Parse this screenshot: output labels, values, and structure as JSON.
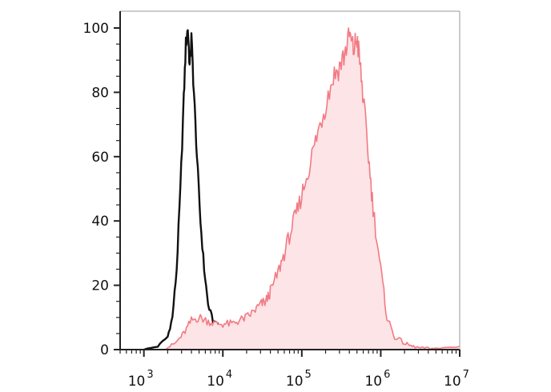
{
  "chart_data": {
    "type": "area",
    "title": "",
    "xlabel": "",
    "ylabel": "",
    "x_scale": "log",
    "xlim": [
      500,
      10000000
    ],
    "ylim": [
      0,
      100
    ],
    "grid": false,
    "x_tick_labels": [
      {
        "base": "10",
        "exp": "3",
        "value": 1000
      },
      {
        "base": "10",
        "exp": "4",
        "value": 10000
      },
      {
        "base": "10",
        "exp": "5",
        "value": 100000
      },
      {
        "base": "10",
        "exp": "6",
        "value": 1000000
      },
      {
        "base": "10",
        "exp": "7",
        "value": 10000000
      }
    ],
    "y_tick_labels": [
      {
        "label": "0",
        "value": 0
      },
      {
        "label": "20",
        "value": 20
      },
      {
        "label": "40",
        "value": 40
      },
      {
        "label": "60",
        "value": 60
      },
      {
        "label": "80",
        "value": 80
      },
      {
        "label": "100",
        "value": 100
      }
    ],
    "series": [
      {
        "style": "outline",
        "color": "#111111",
        "x": [
          1000,
          1500,
          2000,
          2300,
          2600,
          2900,
          3200,
          3400,
          3600,
          3800,
          4000,
          4300,
          4700,
          5200,
          5800,
          6500,
          7500,
          9000,
          11000,
          13000,
          16000,
          20000,
          26000,
          33000,
          40000,
          50000
        ],
        "y": [
          0,
          1,
          4,
          10,
          25,
          50,
          78,
          95,
          100,
          88,
          97,
          80,
          60,
          40,
          25,
          14,
          9,
          7,
          6,
          5,
          4,
          3,
          2,
          1,
          0.5,
          0
        ]
      },
      {
        "style": "filled",
        "color": "#f27a84",
        "fill": "#fde4e6",
        "x": [
          1800,
          2500,
          3200,
          4000,
          5000,
          6300,
          8000,
          10000,
          13000,
          16000,
          20000,
          25000,
          30000,
          35000,
          40000,
          50000,
          60000,
          75000,
          90000,
          110000,
          140000,
          170000,
          200000,
          250000,
          300000,
          350000,
          400000,
          450000,
          500000,
          550000,
          600000,
          700000,
          800000,
          1000000,
          1200000,
          1500000,
          2000000,
          2500000,
          3200000,
          4000000,
          5000000,
          10000000
        ],
        "y": [
          0,
          2,
          5,
          9,
          10,
          9,
          8,
          8,
          8,
          9,
          10,
          12,
          14,
          15,
          18,
          24,
          30,
          38,
          44,
          52,
          62,
          70,
          76,
          85,
          88,
          92,
          98,
          93,
          97,
          88,
          78,
          60,
          44,
          25,
          10,
          4,
          2,
          1,
          0.5,
          0.5,
          0.3,
          1
        ]
      }
    ]
  }
}
